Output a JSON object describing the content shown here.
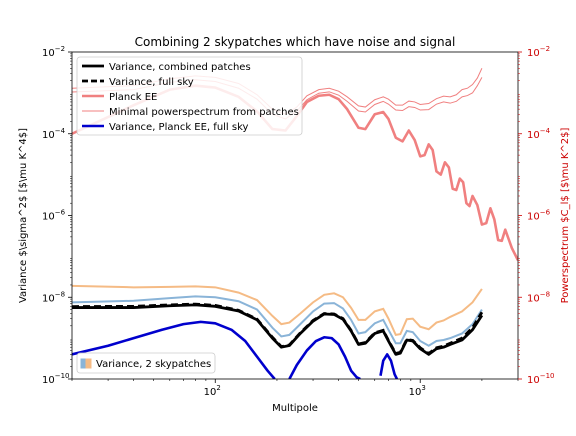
{
  "chart_data": {
    "type": "line",
    "title": "Combining 2 skypatches which have noise and signal",
    "xlabel": "Multipole",
    "ylabel_left": "Variance $\\sigma^2$ [$\\mu K^4$]",
    "ylabel_right": "Powerspectrum $C_l$ [$\\mu K^2$]",
    "xscale": "log",
    "yscale": "log",
    "xlim": [
      20,
      3000
    ],
    "ylim_left": [
      1e-10,
      0.01
    ],
    "ylim_right": [
      1e-10,
      0.01
    ],
    "x_ticks": [
      {
        "value": 100,
        "base": "10",
        "exp": "2"
      },
      {
        "value": 1000,
        "base": "10",
        "exp": "3"
      }
    ],
    "y_ticks": [
      {
        "value": 1e-10,
        "base": "10",
        "exp": "−10"
      },
      {
        "value": 1e-08,
        "base": "10",
        "exp": "−8"
      },
      {
        "value": 1e-06,
        "base": "10",
        "exp": "−6"
      },
      {
        "value": 0.0001,
        "base": "10",
        "exp": "−4"
      },
      {
        "value": 0.01,
        "base": "10",
        "exp": "−2"
      }
    ],
    "grid": false,
    "legend_main_position": "upper left",
    "legend_fill_position": "lower left",
    "colors": {
      "combined": "#000000",
      "full_sky": "#000000",
      "planck_ee": "#f08080",
      "minimal": "#f08080",
      "planck_full": "#0000cd",
      "patch_a": "#8ab4d8",
      "patch_b": "#f5bb85",
      "right_axis": "#cc0000"
    },
    "series": [
      {
        "name": "Variance, combined patches",
        "axis": "left",
        "style": "solid-thick",
        "x": [
          20,
          40,
          60,
          80,
          100,
          130,
          160,
          190,
          210,
          230,
          260,
          300,
          340,
          380,
          420,
          460,
          500,
          540,
          600,
          660,
          700,
          760,
          800,
          860,
          920,
          1000,
          1100,
          1200,
          1300,
          1400,
          1600,
          1800,
          2000
        ],
        "y": [
          5.6e-09,
          5.6e-09,
          6.2e-09,
          6.5e-09,
          6e-09,
          4.6e-09,
          2.8e-09,
          1e-09,
          6e-10,
          6.6e-10,
          1.3e-09,
          2.6e-09,
          3.9e-09,
          3.8e-09,
          2.9e-09,
          1.5e-09,
          7e-10,
          7.5e-10,
          1.3e-09,
          1.5e-09,
          8.5e-10,
          4e-10,
          4.3e-10,
          9e-10,
          8.5e-10,
          5.5e-10,
          4e-10,
          5.5e-10,
          6e-10,
          7e-10,
          9e-10,
          1.6e-09,
          3.6e-09
        ]
      },
      {
        "name": "Variance, full sky",
        "axis": "left",
        "style": "dashed-thick",
        "x": [
          20,
          40,
          60,
          80,
          100,
          130,
          160,
          190,
          210,
          230,
          260,
          300,
          340,
          380,
          420,
          460,
          500,
          540,
          600,
          660,
          700,
          760,
          800,
          860,
          920,
          1000,
          1100,
          1200,
          1300,
          1400,
          1600,
          1800,
          2000
        ],
        "y": [
          5.9e-09,
          6e-09,
          6.5e-09,
          6.8e-09,
          6.3e-09,
          4.8e-09,
          2.9e-09,
          1.05e-09,
          6.2e-10,
          6.8e-10,
          1.35e-09,
          2.7e-09,
          4e-09,
          3.9e-09,
          3e-09,
          1.55e-09,
          7.2e-10,
          7.8e-10,
          1.35e-09,
          1.55e-09,
          8.8e-10,
          4.2e-10,
          4.5e-10,
          9.3e-10,
          8.8e-10,
          5.8e-10,
          4.2e-10,
          5.8e-10,
          6.4e-10,
          7.5e-10,
          1e-09,
          1.8e-09,
          4.3e-09
        ]
      },
      {
        "name": "Planck EE",
        "axis": "right",
        "style": "solid-thick",
        "x": [
          20,
          40,
          60,
          80,
          100,
          130,
          160,
          190,
          220,
          250,
          280,
          320,
          360,
          400,
          440,
          500,
          540,
          600,
          660,
          700,
          760,
          820,
          880,
          940,
          1000,
          1050,
          1100,
          1150,
          1200,
          1260,
          1320,
          1380,
          1440,
          1500,
          1560,
          1620,
          1680,
          1740,
          1800,
          1900,
          2000,
          2100,
          2200,
          2300,
          2400,
          2500,
          2600,
          2800,
          3000
        ],
        "y": [
          0.0001,
          0.0005,
          0.0012,
          0.0015,
          0.00135,
          0.0008,
          0.00035,
          0.00013,
          0.00012,
          0.00027,
          0.0006,
          0.00085,
          0.0009,
          0.0007,
          0.0004,
          0.00014,
          0.00013,
          0.0003,
          0.00034,
          0.00023,
          8e-05,
          6.5e-05,
          0.00012,
          7e-05,
          2.8e-05,
          3e-05,
          5.5e-05,
          4e-05,
          1.2e-05,
          1e-05,
          2e-05,
          1.5e-05,
          4.5e-06,
          4.2e-06,
          8e-06,
          6.5e-06,
          2e-06,
          1.7e-06,
          3e-06,
          1.8e-06,
          6e-07,
          6.5e-07,
          1.5e-06,
          8e-07,
          2.5e-07,
          2.4e-07,
          4.5e-07,
          1.6e-07,
          8e-08
        ]
      },
      {
        "name": "Minimal powerspectrum from patches",
        "axis": "right",
        "style": "solid-thin",
        "x": [
          20,
          40,
          60,
          80,
          100,
          130,
          160,
          190,
          220,
          250,
          280,
          320,
          360,
          400,
          440,
          500,
          540,
          600,
          660,
          700,
          760,
          820,
          880,
          940,
          1000,
          1100,
          1200,
          1300,
          1400,
          1500,
          1600,
          1700,
          1800,
          1900,
          2000
        ],
        "y": [
          0.00105,
          0.0012,
          0.0018,
          0.0021,
          0.0019,
          0.0013,
          0.0007,
          0.0003,
          0.00023,
          0.00036,
          0.00068,
          0.00098,
          0.00106,
          0.00088,
          0.00062,
          0.00036,
          0.00034,
          0.00052,
          0.00062,
          0.00053,
          0.00038,
          0.00037,
          0.00046,
          0.00044,
          0.00038,
          0.00039,
          0.00053,
          0.0006,
          0.00056,
          0.00062,
          0.0008,
          0.00086,
          0.001,
          0.0015,
          0.0024
        ]
      },
      {
        "name": "Minimal powerspectrum from patches",
        "axis": "right",
        "style": "solid-thin",
        "show_in_legend": false,
        "x": [
          20,
          40,
          60,
          80,
          100,
          130,
          160,
          190,
          220,
          250,
          280,
          320,
          360,
          400,
          440,
          500,
          540,
          600,
          660,
          700,
          760,
          820,
          880,
          940,
          1000,
          1100,
          1200,
          1300,
          1400,
          1500,
          1600,
          1700,
          1800,
          1900,
          2000
        ],
        "y": [
          0.0013,
          0.0015,
          0.0022,
          0.0026,
          0.0024,
          0.0017,
          0.0009,
          0.0004,
          0.0003,
          0.00045,
          0.00085,
          0.0012,
          0.0013,
          0.0011,
          0.0008,
          0.00048,
          0.00045,
          0.00068,
          0.0008,
          0.0007,
          0.0005,
          0.0005,
          0.00063,
          0.0006,
          0.00052,
          0.00055,
          0.00072,
          0.00083,
          0.0008,
          0.0009,
          0.0012,
          0.0013,
          0.0016,
          0.0023,
          0.004
        ]
      },
      {
        "name": "Variance, Planck EE, full sky",
        "axis": "left",
        "style": "solid-thick",
        "segments": [
          {
            "x": [
              20,
              30,
              40,
              55,
              70,
              85,
              100,
              120,
              140,
              160,
              180,
              195
            ],
            "y": [
              4e-10,
              6.5e-10,
              1e-09,
              1.6e-09,
              2.2e-09,
              2.5e-09,
              2.3e-09,
              1.6e-09,
              8.5e-10,
              3.5e-10,
              1.6e-10,
              1e-10
            ]
          },
          {
            "x": [
              230,
              250,
              280,
              310,
              340,
              370,
              400,
              430,
              460,
              490,
              510
            ],
            "y": [
              1e-10,
              2.2e-10,
              5e-10,
              8.5e-10,
              1.05e-09,
              1e-09,
              7e-10,
              3.5e-10,
              1.6e-10,
              1.1e-10,
              1e-10
            ]
          },
          {
            "x": [
              640,
              660,
              690,
              720,
              750,
              770
            ],
            "y": [
              1.2e-10,
              2.8e-10,
              4e-10,
              2.8e-10,
              1.3e-10,
              1e-10
            ]
          }
        ]
      },
      {
        "name": "Variance, 2 skypatches",
        "axis": "left",
        "style": "band",
        "lower": {
          "x": [
            20,
            40,
            60,
            80,
            100,
            130,
            160,
            190,
            210,
            230,
            260,
            300,
            340,
            380,
            420,
            460,
            500,
            540,
            600,
            660,
            700,
            760,
            800,
            860,
            920,
            1000,
            1100,
            1200,
            1300,
            1400,
            1600,
            1800,
            2000
          ],
          "y": [
            7.5e-09,
            8.2e-09,
            9.5e-09,
            1.05e-08,
            1e-08,
            8e-09,
            5e-09,
            1.8e-09,
            1.1e-09,
            1.2e-09,
            2.2e-09,
            4.5e-09,
            7e-09,
            7.2e-09,
            5.3e-09,
            2.8e-09,
            1.3e-09,
            1.4e-09,
            2.3e-09,
            2.8e-09,
            1.6e-09,
            7.5e-10,
            7.5e-10,
            1.5e-09,
            1.4e-09,
            8.5e-10,
            6.5e-10,
            8.5e-10,
            9e-10,
            1e-09,
            1.3e-09,
            2.2e-09,
            5e-09
          ]
        },
        "upper": {
          "x": [
            20,
            40,
            60,
            80,
            100,
            130,
            160,
            190,
            210,
            230,
            260,
            300,
            340,
            380,
            420,
            460,
            500,
            540,
            600,
            660,
            700,
            760,
            800,
            860,
            920,
            1000,
            1100,
            1200,
            1300,
            1400,
            1600,
            1800,
            2000
          ],
          "y": [
            1.9e-08,
            1.75e-08,
            1.8e-08,
            1.85e-08,
            1.75e-08,
            1.3e-08,
            8.5e-09,
            3.5e-09,
            2.2e-09,
            2.4e-09,
            4e-09,
            7.5e-09,
            1.15e-08,
            1.25e-08,
            1e-08,
            5.5e-09,
            2.8e-09,
            2.8e-09,
            4.5e-09,
            5.2e-09,
            3e-09,
            1.2e-09,
            1.25e-09,
            2.9e-09,
            3e-09,
            1.9e-09,
            1.65e-09,
            2.4e-09,
            2.7e-09,
            3.3e-09,
            4.5e-09,
            7.5e-09,
            1.6e-08
          ]
        }
      }
    ]
  }
}
